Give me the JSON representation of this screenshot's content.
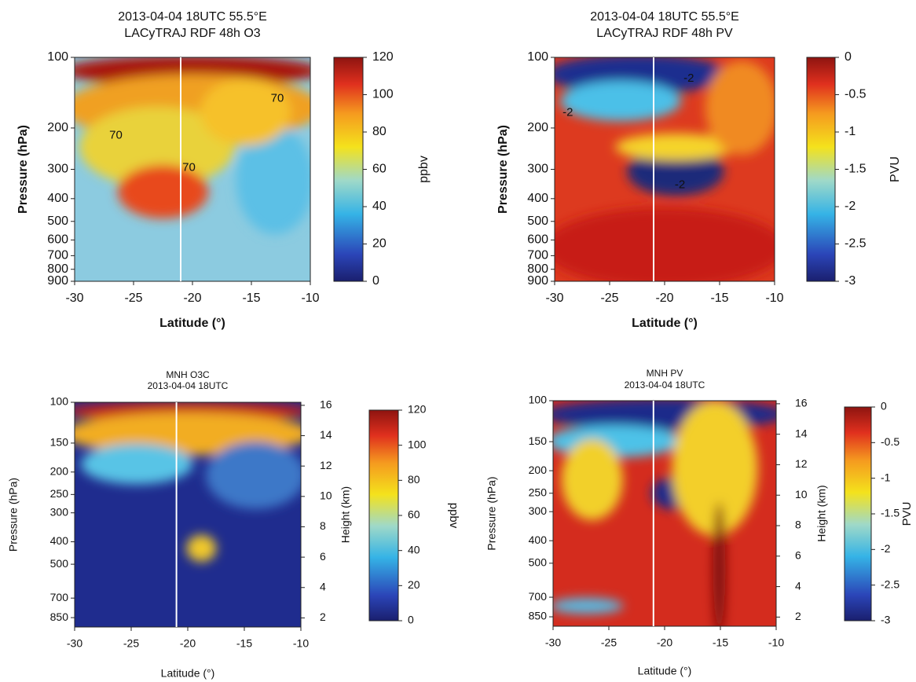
{
  "chart_data": [
    {
      "type": "heatmap",
      "title": "2013-04-04 18UTC 55.5°E",
      "subtitle": "LACyTRAJ RDF 48h O3",
      "xlabel": "Latitude (°)",
      "ylabel": "Pressure (hPa)",
      "log_y": true,
      "xlim": [
        -30,
        -10
      ],
      "xticks": [
        -30,
        -25,
        -20,
        -15,
        -10
      ],
      "ylim": [
        900,
        100
      ],
      "yticks": [
        100,
        200,
        300,
        400,
        500,
        600,
        700,
        800,
        900
      ],
      "marker_line_x": -21,
      "annotations": [
        {
          "text": "70",
          "x": -26.5,
          "y": 215
        },
        {
          "text": "70",
          "x": -12.8,
          "y": 150
        },
        {
          "text": "70",
          "x": -20.3,
          "y": 295
        }
      ],
      "colorbar": {
        "label": "ppbv",
        "clim": [
          0,
          120
        ],
        "ticks": [
          0,
          20,
          40,
          60,
          80,
          100,
          120
        ]
      }
    },
    {
      "type": "heatmap",
      "title": "2013-04-04 18UTC 55.5°E",
      "subtitle": "LACyTRAJ RDF 48h PV",
      "xlabel": "Latitude (°)",
      "ylabel": "Pressure (hPa)",
      "log_y": true,
      "xlim": [
        -30,
        -10
      ],
      "xticks": [
        -30,
        -25,
        -20,
        -15,
        -10
      ],
      "ylim": [
        900,
        100
      ],
      "yticks": [
        100,
        200,
        300,
        400,
        500,
        600,
        700,
        800,
        900
      ],
      "marker_line_x": -21,
      "annotations": [
        {
          "text": "-2",
          "x": -28.8,
          "y": 172
        },
        {
          "text": "-2",
          "x": -17.8,
          "y": 123
        },
        {
          "text": "-2",
          "x": -18.6,
          "y": 350
        }
      ],
      "colorbar": {
        "label": "PVU",
        "clim": [
          -3,
          0
        ],
        "ticks": [
          0,
          -0.5,
          -1,
          -1.5,
          -2,
          -2.5,
          -3
        ]
      }
    },
    {
      "type": "heatmap",
      "title": "MNH O3C",
      "subtitle": "2013-04-04 18UTC",
      "xlabel": "Latitude (°)",
      "ylabel": "Pressure (hPa)",
      "y2label": "Height (km)",
      "log_y": true,
      "xlim": [
        -30,
        -10
      ],
      "xticks": [
        -30,
        -25,
        -20,
        -15,
        -10
      ],
      "ylim": [
        933,
        100
      ],
      "yticks": [
        100,
        150,
        200,
        250,
        300,
        400,
        500,
        700,
        850
      ],
      "y2lim": [
        1.4,
        16.2
      ],
      "y2ticks": [
        2,
        4,
        6,
        8,
        10,
        12,
        14,
        16
      ],
      "marker_line_x": -21,
      "colorbar": {
        "label": "ppbv",
        "clim": [
          0,
          120
        ],
        "ticks": [
          0,
          20,
          40,
          60,
          80,
          100,
          120
        ]
      }
    },
    {
      "type": "heatmap",
      "title": "MNH PV",
      "subtitle": "2013-04-04 18UTC",
      "xlabel": "Latitude (°)",
      "ylabel": "Pressure (hPa)",
      "y2label": "Height (km)",
      "log_y": true,
      "xlim": [
        -30,
        -10
      ],
      "xticks": [
        -30,
        -25,
        -20,
        -15,
        -10
      ],
      "ylim": [
        933,
        100
      ],
      "yticks": [
        100,
        150,
        200,
        250,
        300,
        400,
        500,
        700,
        850
      ],
      "y2lim": [
        1.4,
        16.2
      ],
      "y2ticks": [
        2,
        4,
        6,
        8,
        10,
        12,
        14,
        16
      ],
      "marker_line_x": -21,
      "colorbar": {
        "label": "PVU",
        "clim": [
          -3,
          0
        ],
        "ticks": [
          0,
          -0.5,
          -1,
          -1.5,
          -2,
          -2.5,
          -3
        ]
      }
    }
  ]
}
